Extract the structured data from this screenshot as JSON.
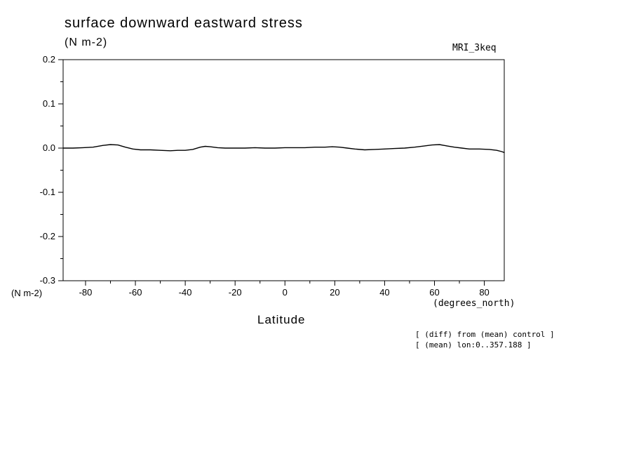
{
  "chart_data": {
    "type": "line",
    "title": "surface downward eastward stress",
    "units_top": "(N m-2)",
    "model_label": "MRI_3keq",
    "xlabel": "Latitude",
    "x_units_label": "(degrees_north)",
    "y_units_label": "(N m-2)",
    "annotations": [
      "[ (diff) from (mean) control ]",
      "[ (mean) lon:0..357.188 ]"
    ],
    "xlim": [
      -89,
      88
    ],
    "ylim": [
      -0.3,
      0.2
    ],
    "grid": false,
    "legend": "none",
    "line_color": "#000000",
    "x_ticks": [
      {
        "value": -80,
        "label": "-80"
      },
      {
        "value": -60,
        "label": "-60"
      },
      {
        "value": -40,
        "label": "-40"
      },
      {
        "value": -20,
        "label": "-20"
      },
      {
        "value": 0,
        "label": "0"
      },
      {
        "value": 20,
        "label": "20"
      },
      {
        "value": 40,
        "label": "40"
      },
      {
        "value": 60,
        "label": "60"
      },
      {
        "value": 80,
        "label": "80"
      }
    ],
    "x_minor_ticks": [
      -70,
      -50,
      -30,
      -10,
      10,
      30,
      50,
      70
    ],
    "y_ticks": [
      {
        "value": 0.2,
        "label": "0.2"
      },
      {
        "value": 0.1,
        "label": "0.1"
      },
      {
        "value": 0.0,
        "label": "0.0"
      },
      {
        "value": -0.1,
        "label": "-0.1"
      },
      {
        "value": -0.2,
        "label": "-0.2"
      },
      {
        "value": -0.3,
        "label": "-0.3"
      }
    ],
    "y_minor_ticks": [
      0.15,
      0.05,
      -0.05,
      -0.15,
      -0.25
    ],
    "series": [
      {
        "name": "MRI_3keq diff from control",
        "points": [
          [
            -89,
            0.0
          ],
          [
            -85,
            0.0
          ],
          [
            -81,
            0.001
          ],
          [
            -77,
            0.002
          ],
          [
            -73,
            0.006
          ],
          [
            -70,
            0.008
          ],
          [
            -67,
            0.007
          ],
          [
            -64,
            0.002
          ],
          [
            -61,
            -0.002
          ],
          [
            -58,
            -0.004
          ],
          [
            -54,
            -0.004
          ],
          [
            -50,
            -0.005
          ],
          [
            -46,
            -0.006
          ],
          [
            -43,
            -0.005
          ],
          [
            -40,
            -0.005
          ],
          [
            -37,
            -0.003
          ],
          [
            -34,
            0.002
          ],
          [
            -32,
            0.004
          ],
          [
            -30,
            0.003
          ],
          [
            -27,
            0.001
          ],
          [
            -24,
            0.0
          ],
          [
            -20,
            0.0
          ],
          [
            -16,
            0.0
          ],
          [
            -12,
            0.001
          ],
          [
            -8,
            0.0
          ],
          [
            -4,
            0.0
          ],
          [
            0,
            0.001
          ],
          [
            4,
            0.001
          ],
          [
            8,
            0.001
          ],
          [
            12,
            0.002
          ],
          [
            16,
            0.002
          ],
          [
            19,
            0.003
          ],
          [
            22,
            0.002
          ],
          [
            25,
            0.0
          ],
          [
            28,
            -0.002
          ],
          [
            32,
            -0.004
          ],
          [
            36,
            -0.003
          ],
          [
            40,
            -0.002
          ],
          [
            44,
            -0.001
          ],
          [
            48,
            0.0
          ],
          [
            52,
            0.002
          ],
          [
            56,
            0.005
          ],
          [
            59,
            0.007
          ],
          [
            62,
            0.008
          ],
          [
            65,
            0.005
          ],
          [
            68,
            0.002
          ],
          [
            71,
            0.0
          ],
          [
            74,
            -0.002
          ],
          [
            78,
            -0.002
          ],
          [
            82,
            -0.003
          ],
          [
            85,
            -0.005
          ],
          [
            87,
            -0.008
          ],
          [
            88,
            -0.01
          ]
        ]
      }
    ]
  }
}
